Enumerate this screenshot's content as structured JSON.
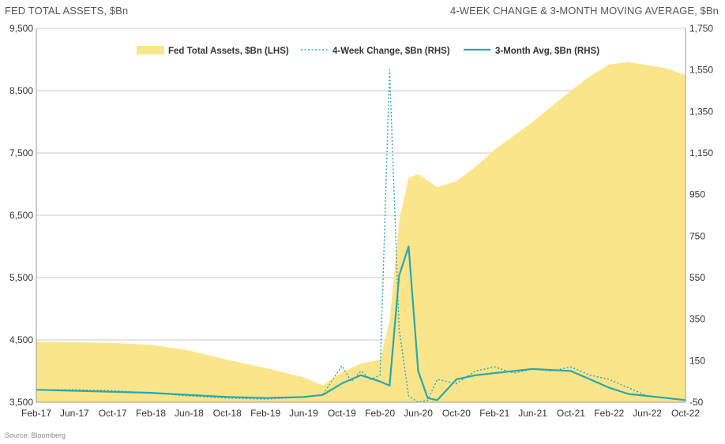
{
  "header": {
    "left_title": "FED TOTAL ASSETS, $Bn",
    "right_title": "4-WEEK CHANGE & 3-MONTH MOVING AVERAGE, $Bn"
  },
  "footer": {
    "source": "Source: Bloomberg"
  },
  "colors": {
    "area": "#fbe58a",
    "line": "#2aa7b0",
    "grid": "#c8c8c8"
  },
  "chart_data": {
    "type": "area",
    "title": "",
    "xlabel": "",
    "ylabel_left": "Fed Total Assets, $Bn",
    "ylabel_right": "4-Week Change / 3-Month Avg, $Bn",
    "x_ticks": [
      "Feb-17",
      "Jun-17",
      "Oct-17",
      "Feb-18",
      "Jun-18",
      "Oct-18",
      "Feb-19",
      "Jun-19",
      "Oct-19",
      "Feb-20",
      "Jun-20",
      "Oct-20",
      "Feb-21",
      "Jun-21",
      "Oct-21",
      "Feb-22",
      "Jun-22",
      "Oct-22"
    ],
    "y_left_ticks": [
      "3,500",
      "4,500",
      "5,500",
      "6,500",
      "7,500",
      "8,500",
      "9,500"
    ],
    "y_right_ticks": [
      "-50",
      "150",
      "350",
      "550",
      "750",
      "950",
      "1,150",
      "1,350",
      "1,550",
      "1,750"
    ],
    "ylim_left": [
      3500,
      9500
    ],
    "ylim_right": [
      -50,
      1750
    ],
    "grid": true,
    "legend_position": "top",
    "legend": [
      "Fed Total Assets, $Bn (LHS)",
      "4-Week Change, $Bn (RHS)",
      "3-Month Avg, $Bn (RHS)"
    ],
    "x_dates": [
      "2017-02",
      "2017-06",
      "2017-10",
      "2018-02",
      "2018-06",
      "2018-10",
      "2019-02",
      "2019-06",
      "2019-10",
      "2020-02",
      "2020-03",
      "2020-04",
      "2020-06",
      "2020-08",
      "2020-10",
      "2021-02",
      "2021-06",
      "2021-10",
      "2021-12",
      "2022-02",
      "2022-04",
      "2022-06",
      "2022-10"
    ],
    "series": [
      {
        "name": "Fed Total Assets, $Bn (LHS)",
        "axis": "left",
        "style": "area",
        "x": [
          "2017-02",
          "2017-06",
          "2017-10",
          "2018-02",
          "2018-06",
          "2018-10",
          "2019-02",
          "2019-06",
          "2019-08",
          "2019-10",
          "2019-12",
          "2020-02",
          "2020-03",
          "2020-04",
          "2020-05",
          "2020-06",
          "2020-08",
          "2020-10",
          "2020-12",
          "2021-02",
          "2021-06",
          "2021-10",
          "2021-12",
          "2022-02",
          "2022-04",
          "2022-06",
          "2022-08",
          "2022-10"
        ],
        "values": [
          4470,
          4465,
          4450,
          4420,
          4330,
          4180,
          4050,
          3900,
          3770,
          3980,
          4120,
          4180,
          4800,
          6400,
          7100,
          7160,
          6950,
          7050,
          7280,
          7550,
          8000,
          8500,
          8730,
          8920,
          8960,
          8910,
          8860,
          8750
        ]
      },
      {
        "name": "4-Week Change, $Bn (RHS)",
        "axis": "right",
        "style": "dotted",
        "x": [
          "2017-02",
          "2017-06",
          "2017-10",
          "2018-02",
          "2018-06",
          "2018-10",
          "2019-02",
          "2019-06",
          "2019-08",
          "2019-10",
          "2019-11",
          "2019-12",
          "2020-01",
          "2020-02",
          "2020-03",
          "2020-04",
          "2020-05",
          "2020-06",
          "2020-07",
          "2020-08",
          "2020-10",
          "2020-12",
          "2021-02",
          "2021-04",
          "2021-06",
          "2021-08",
          "2021-10",
          "2021-12",
          "2022-02",
          "2022-04",
          "2022-06",
          "2022-08",
          "2022-10"
        ],
        "values": [
          10,
          10,
          5,
          -5,
          -20,
          -30,
          -35,
          -25,
          -15,
          125,
          50,
          100,
          60,
          80,
          1550,
          300,
          -20,
          -50,
          -40,
          60,
          40,
          100,
          120,
          90,
          110,
          100,
          120,
          80,
          60,
          20,
          -20,
          -30,
          -40
        ]
      },
      {
        "name": "3-Month Avg, $Bn (RHS)",
        "axis": "right",
        "style": "line",
        "x": [
          "2017-02",
          "2017-06",
          "2017-10",
          "2018-02",
          "2018-06",
          "2018-10",
          "2019-02",
          "2019-06",
          "2019-08",
          "2019-10",
          "2019-12",
          "2020-02",
          "2020-03",
          "2020-04",
          "2020-05",
          "2020-06",
          "2020-07",
          "2020-08",
          "2020-10",
          "2020-12",
          "2021-02",
          "2021-06",
          "2021-10",
          "2021-12",
          "2022-02",
          "2022-04",
          "2022-06",
          "2022-08",
          "2022-10"
        ],
        "values": [
          10,
          5,
          0,
          -5,
          -15,
          -25,
          -30,
          -25,
          -15,
          40,
          80,
          50,
          30,
          560,
          700,
          100,
          -30,
          -40,
          60,
          80,
          90,
          110,
          100,
          60,
          20,
          -10,
          -20,
          -30,
          -40
        ]
      }
    ]
  }
}
